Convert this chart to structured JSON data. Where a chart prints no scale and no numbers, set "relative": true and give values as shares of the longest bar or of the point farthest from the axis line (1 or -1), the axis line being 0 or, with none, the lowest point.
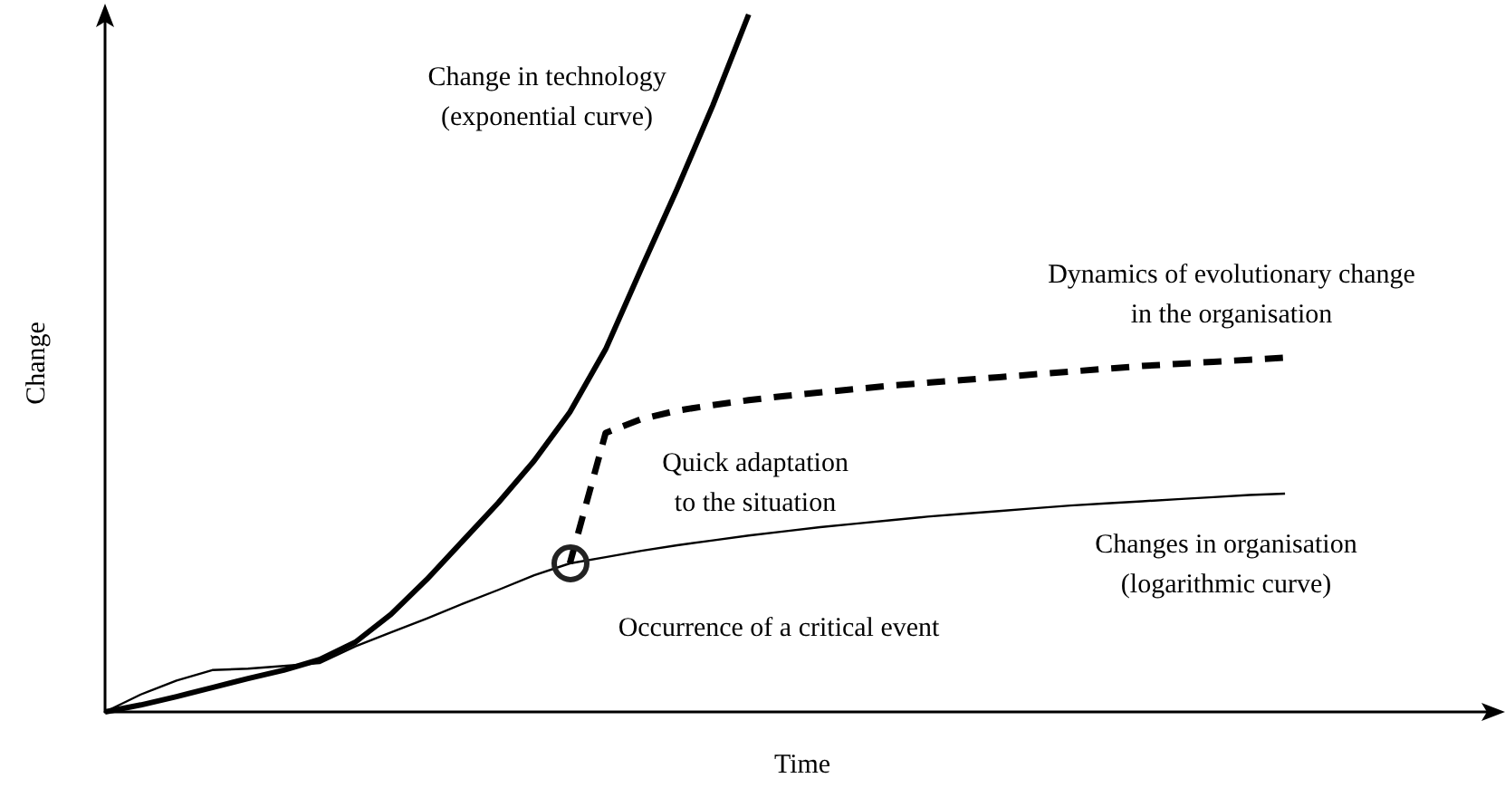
{
  "chart_data": {
    "type": "line",
    "relative": true,
    "xlabel": "Time",
    "ylabel": "Change",
    "marker": "none",
    "categories": [
      null,
      null,
      null,
      null,
      null,
      null,
      null,
      null,
      null,
      null,
      null,
      null,
      null,
      null,
      null,
      null,
      null,
      null,
      null,
      null,
      null,
      null,
      null,
      null,
      null,
      null,
      null,
      null,
      null,
      null,
      null,
      null,
      null,
      null,
      null,
      null,
      null,
      null,
      null,
      null
    ],
    "series": [
      {
        "color": "#000000",
        "line_style": "solid",
        "values": [
          0,
          0.01,
          0.022,
          0.035,
          0.048,
          0.06,
          0.075,
          0.1,
          0.14,
          0.19,
          0.245,
          0.3,
          0.36,
          0.43,
          0.52,
          0.636,
          0.75,
          0.87,
          1,
          null,
          null,
          null,
          null,
          null,
          null,
          null,
          null,
          null,
          null,
          null,
          null,
          null,
          null,
          null,
          null,
          null,
          null,
          null,
          null,
          null
        ]
      },
      {
        "color": "#000000",
        "line_style": "solid",
        "values": [
          0,
          0.025,
          0.045,
          0.06,
          0.062,
          0.066,
          0.07,
          0.094,
          0.114,
          0.134,
          0.155,
          0.175,
          0.196,
          0.213,
          0.222,
          0.231,
          0.239,
          0.246,
          0.253,
          0.259,
          0.265,
          0.27,
          0.275,
          0.28,
          0.284,
          0.288,
          0.292,
          0.296,
          0.299,
          0.302,
          0.305,
          0.308,
          0.311,
          0.313,
          null,
          null,
          null,
          null,
          null,
          null
        ]
      },
      {
        "color": "#000000",
        "line_style": "dashed",
        "values": [
          null,
          null,
          null,
          null,
          null,
          null,
          null,
          null,
          null,
          null,
          null,
          null,
          null,
          0.213,
          0.4,
          0.42,
          0.432,
          0.44,
          0.447,
          0.453,
          0.458,
          0.463,
          0.468,
          0.472,
          0.476,
          0.48,
          0.484,
          0.488,
          0.492,
          0.496,
          0.499,
          0.502,
          0.505,
          0.508,
          null,
          null,
          null,
          null,
          null,
          null
        ]
      }
    ],
    "annotations": [
      "Change in technology\n(exponential curve)",
      "Dynamics of evolutionary change\nin the organisation",
      "Quick adaptation\nto the situation",
      "Changes in organisation\n(logarithmic curve)",
      "Occurrence of a critical event"
    ]
  }
}
